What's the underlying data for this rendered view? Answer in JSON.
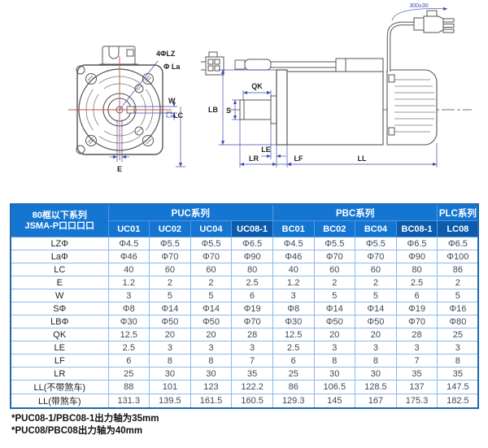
{
  "drawing": {
    "front": {
      "label_bolt": "4ΦLZ",
      "label_la": "Φ La",
      "label_w": "W",
      "label_lc": "LC",
      "label_e": "E"
    },
    "side": {
      "label_lb": "LB",
      "label_s": "S",
      "label_qk": "QK",
      "label_le": "LE",
      "label_lr": "LR",
      "label_lf": "LF",
      "label_ll": "LL",
      "label_cable": "300±30"
    }
  },
  "table": {
    "corner": {
      "line1": "80框以下系列",
      "line2": "JSMA-P口口口口"
    },
    "series": [
      {
        "label": "PUC系列",
        "span": 4
      },
      {
        "label": "PBC系列",
        "span": 4
      },
      {
        "label": "PLC系列",
        "span": 1
      }
    ],
    "columns": [
      {
        "label": "UC01",
        "dark": false
      },
      {
        "label": "UC02",
        "dark": false
      },
      {
        "label": "UC04",
        "dark": false
      },
      {
        "label": "UC08-1",
        "dark": true
      },
      {
        "label": "BC01",
        "dark": false
      },
      {
        "label": "BC02",
        "dark": false
      },
      {
        "label": "BC04",
        "dark": false
      },
      {
        "label": "BC08-1",
        "dark": true
      },
      {
        "label": "LC08",
        "dark": true
      }
    ],
    "rows": [
      {
        "label": "LZΦ",
        "values": [
          "Φ4.5",
          "Φ5.5",
          "Φ5.5",
          "Φ6.5",
          "Φ4.5",
          "Φ5.5",
          "Φ5.5",
          "Φ6.5",
          "Φ6.5"
        ]
      },
      {
        "label": "LaΦ",
        "values": [
          "Φ46",
          "Φ70",
          "Φ70",
          "Φ90",
          "Φ46",
          "Φ70",
          "Φ70",
          "Φ90",
          "Φ100"
        ]
      },
      {
        "label": "LC",
        "values": [
          "40",
          "60",
          "60",
          "80",
          "40",
          "60",
          "60",
          "80",
          "86"
        ]
      },
      {
        "label": "E",
        "values": [
          "1.2",
          "2",
          "2",
          "2.5",
          "1.2",
          "2",
          "2",
          "2.5",
          "2"
        ]
      },
      {
        "label": "W",
        "values": [
          "3",
          "5",
          "5",
          "6",
          "3",
          "5",
          "5",
          "6",
          "5"
        ]
      },
      {
        "label": "SΦ",
        "values": [
          "Φ8",
          "Φ14",
          "Φ14",
          "Φ19",
          "Φ8",
          "Φ14",
          "Φ14",
          "Φ19",
          "Φ16"
        ]
      },
      {
        "label": "LBΦ",
        "values": [
          "Φ30",
          "Φ50",
          "Φ50",
          "Φ70",
          "Φ30",
          "Φ50",
          "Φ50",
          "Φ70",
          "Φ80"
        ]
      },
      {
        "label": "QK",
        "values": [
          "12.5",
          "20",
          "20",
          "28",
          "12.5",
          "20",
          "20",
          "28",
          "25"
        ]
      },
      {
        "label": "LE",
        "values": [
          "2.5",
          "3",
          "3",
          "3",
          "2.5",
          "3",
          "3",
          "3",
          "3"
        ]
      },
      {
        "label": "LF",
        "values": [
          "6",
          "8",
          "8",
          "7",
          "6",
          "8",
          "8",
          "7",
          "8"
        ]
      },
      {
        "label": "LR",
        "values": [
          "25",
          "30",
          "30",
          "35",
          "25",
          "30",
          "30",
          "35",
          "35"
        ]
      },
      {
        "label": "LL(不带煞车)",
        "values": [
          "88",
          "101",
          "123",
          "122.2",
          "86",
          "106.5",
          "128.5",
          "137",
          "147.5"
        ]
      },
      {
        "label": "LL(带煞车)",
        "values": [
          "131.3",
          "139.5",
          "161.5",
          "160.5",
          "129.3",
          "145",
          "167",
          "175.3",
          "182.5"
        ]
      }
    ]
  },
  "footnotes": [
    "*PUC08-1/PBC08-1出力轴为35mm",
    "*PUC08/PBC08出力轴为40mm"
  ],
  "colors": {
    "header_blue": "#1576d2",
    "header_dark_blue": "#0d5cab",
    "cell_border": "#8abaec",
    "outer_border": "#2268ae",
    "dimension_blue": "#3949ab",
    "centerline_red": "#c0504d",
    "outline_gray": "#555555"
  }
}
